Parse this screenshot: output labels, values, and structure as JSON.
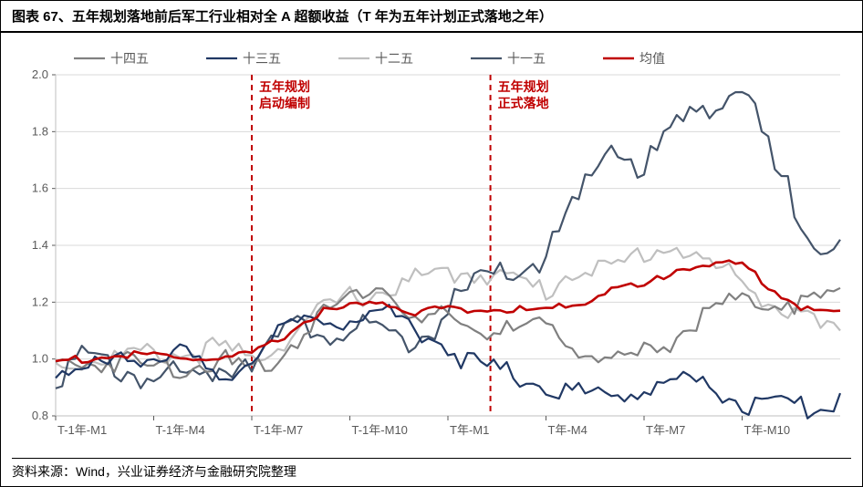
{
  "title": "图表 67、五年规划落地前后军工行业相对全 A 超额收益（T 年为五年计划正式落地之年）",
  "source": "资料来源：Wind，兴业证券经济与金融研究院整理",
  "chart": {
    "type": "line",
    "background_color": "#ffffff",
    "grid_color": "#d9d9d9",
    "axis_color": "#bfbfbf",
    "tick_color": "#595959",
    "ylim": [
      0.8,
      2.0
    ],
    "yticks": [
      0.8,
      1.0,
      1.2,
      1.4,
      1.6,
      1.8,
      2.0
    ],
    "x_labels": [
      "T-1年-M1",
      "T-1年-M4",
      "T-1年-M7",
      "T-1年-M10",
      "T年-M1",
      "T年-M4",
      "T年-M7",
      "T年-M10"
    ],
    "x_points": 24,
    "legend": [
      {
        "label": "十四五",
        "color": "#808080",
        "width": 2.2
      },
      {
        "label": "十三五",
        "color": "#203864",
        "width": 2.2
      },
      {
        "label": "十二五",
        "color": "#bfbfbf",
        "width": 2.2
      },
      {
        "label": "十一五",
        "color": "#44546a",
        "width": 2.2
      },
      {
        "label": "均值",
        "color": "#c00000",
        "width": 2.6
      }
    ],
    "annotations": [
      {
        "label_lines": [
          "五年规划",
          "启动编制"
        ],
        "x_index": 6,
        "color": "#c00000"
      },
      {
        "label_lines": [
          "五年规划",
          "正式落地"
        ],
        "x_index": 13.3,
        "color": "#c00000"
      }
    ],
    "series": {
      "十四五": [
        1.0,
        1.01,
        1.02,
        0.99,
        1.0,
        1.02,
        0.97,
        1.05,
        1.17,
        1.24,
        1.3,
        1.14,
        1.17,
        1.12,
        1.12,
        1.13,
        1.07,
        1.0,
        1.04,
        1.1,
        1.2,
        1.22,
        1.23,
        1.22,
        1.25
      ],
      "十三五": [
        0.99,
        0.98,
        1.02,
        1.05,
        1.03,
        0.93,
        1.04,
        1.12,
        1.17,
        1.16,
        1.19,
        1.14,
        1.06,
        0.99,
        0.97,
        0.93,
        0.9,
        0.9,
        0.91,
        0.95,
        0.93,
        0.87,
        0.85,
        0.85,
        0.88
      ],
      "十二五": [
        1.0,
        1.02,
        1.03,
        1.04,
        1.04,
        1.06,
        1.02,
        1.09,
        1.18,
        1.24,
        1.26,
        1.3,
        1.32,
        1.33,
        1.3,
        1.26,
        1.35,
        1.33,
        1.4,
        1.42,
        1.35,
        1.3,
        1.21,
        1.15,
        1.1
      ],
      "十一五": [
        1.0,
        1.02,
        1.0,
        0.98,
        0.95,
        1.01,
        1.06,
        1.11,
        1.16,
        1.13,
        1.11,
        1.1,
        1.2,
        1.3,
        1.34,
        1.4,
        1.58,
        1.8,
        1.7,
        1.85,
        1.95,
        1.98,
        1.7,
        1.5,
        1.42
      ],
      "均值": [
        1.0,
        1.01,
        1.02,
        1.02,
        1.01,
        1.01,
        1.02,
        1.09,
        1.17,
        1.19,
        1.21,
        1.17,
        1.19,
        1.18,
        1.18,
        1.18,
        1.2,
        1.26,
        1.26,
        1.33,
        1.34,
        1.34,
        1.25,
        1.18,
        1.17
      ]
    },
    "line_width_default": 1.8
  }
}
